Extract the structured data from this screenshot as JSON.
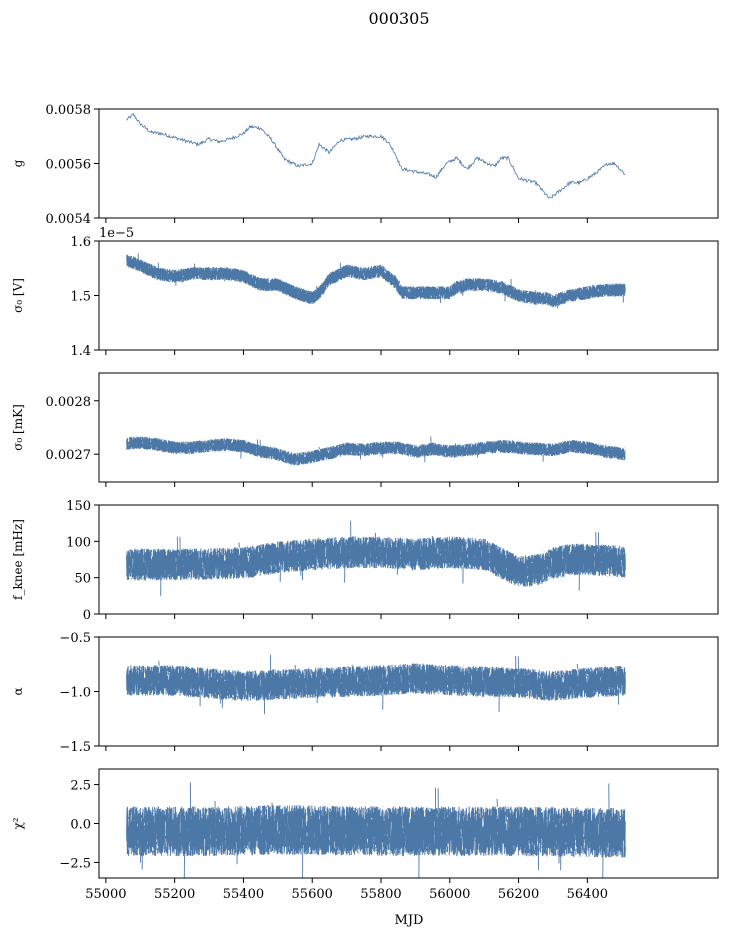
{
  "chart_data": {
    "type": "line",
    "title": "000305",
    "xlabel": "MJD",
    "xlim": [
      54980,
      56780
    ],
    "xticks": [
      55000,
      55200,
      55400,
      55600,
      55800,
      56000,
      56200,
      56400
    ],
    "xtick_labels": [
      "55000",
      "55200",
      "55400",
      "55600",
      "55800",
      "56000",
      "56200",
      "56400"
    ],
    "line_color": "#4c78a8",
    "panels": [
      {
        "id": "gain",
        "ylabel": "g",
        "ylim": [
          0.0054,
          0.0058
        ],
        "yticks": [
          0.0054,
          0.0056,
          0.0058
        ],
        "ytick_labels": [
          "0.0054",
          "0.0056",
          "0.0058"
        ],
        "offset_text": "",
        "style": "line",
        "series": {
          "name": "g",
          "x": [
            55060,
            55080,
            55100,
            55130,
            55160,
            55200,
            55240,
            55270,
            55300,
            55330,
            55360,
            55400,
            55420,
            55450,
            55480,
            55520,
            55560,
            55600,
            55620,
            55650,
            55680,
            55720,
            55760,
            55800,
            55820,
            55840,
            55860,
            55900,
            55940,
            55960,
            55990,
            56020,
            56050,
            56080,
            56110,
            56130,
            56150,
            56170,
            56200,
            56250,
            56290,
            56320,
            56350,
            56380,
            56420,
            56460,
            56480,
            56510
          ],
          "y": [
            0.00576,
            0.00578,
            0.005745,
            0.005715,
            0.00571,
            0.005695,
            0.00568,
            0.00567,
            0.00569,
            0.00568,
            0.00569,
            0.00571,
            0.005735,
            0.00573,
            0.00569,
            0.005615,
            0.00559,
            0.0056,
            0.00567,
            0.00564,
            0.005685,
            0.00569,
            0.0057,
            0.0057,
            0.00568,
            0.00564,
            0.00558,
            0.00557,
            0.00556,
            0.00555,
            0.0056,
            0.00562,
            0.00558,
            0.00562,
            0.0056,
            0.00559,
            0.00562,
            0.00562,
            0.005545,
            0.00553,
            0.00547,
            0.0055,
            0.00553,
            0.00553,
            0.00556,
            0.0056,
            0.0056,
            0.00556
          ]
        }
      },
      {
        "id": "sigma0_v",
        "ylabel": "σ₀ [V]",
        "ylim": [
          1.4,
          1.6
        ],
        "yticks": [
          1.4,
          1.5,
          1.6
        ],
        "ytick_labels": [
          "1.4",
          "1.5",
          "1.6"
        ],
        "offset_text": "1e−5",
        "style": "band",
        "series": {
          "name": "sigma0 [V] (×1e-5)",
          "x": [
            55060,
            55100,
            55150,
            55200,
            55250,
            55300,
            55350,
            55400,
            55450,
            55500,
            55550,
            55600,
            55620,
            55650,
            55700,
            55750,
            55800,
            55840,
            55860,
            55900,
            55950,
            56000,
            56020,
            56050,
            56100,
            56150,
            56200,
            56250,
            56280,
            56300,
            56350,
            56400,
            56450,
            56510
          ],
          "y": [
            1.565,
            1.555,
            1.54,
            1.535,
            1.54,
            1.54,
            1.54,
            1.535,
            1.52,
            1.52,
            1.505,
            1.495,
            1.505,
            1.53,
            1.545,
            1.54,
            1.545,
            1.525,
            1.505,
            1.505,
            1.505,
            1.505,
            1.515,
            1.52,
            1.52,
            1.515,
            1.5,
            1.495,
            1.495,
            1.49,
            1.5,
            1.505,
            1.51,
            1.51
          ],
          "spread": 0.012
        }
      },
      {
        "id": "sigma0_mk",
        "ylabel": "σ₀ [mK]",
        "ylim": [
          0.002648,
          0.002852
        ],
        "yticks": [
          0.0027,
          0.0028
        ],
        "ytick_labels": [
          "0.0027",
          "0.0028"
        ],
        "offset_text": "",
        "style": "band",
        "series": {
          "name": "sigma0 [mK]",
          "x": [
            55060,
            55100,
            55150,
            55200,
            55250,
            55300,
            55350,
            55400,
            55450,
            55500,
            55550,
            55600,
            55650,
            55700,
            55750,
            55800,
            55850,
            55900,
            55950,
            56000,
            56050,
            56100,
            56150,
            56200,
            56250,
            56300,
            56350,
            56400,
            56450,
            56510
          ],
          "y": [
            0.00272,
            0.002722,
            0.002718,
            0.002712,
            0.002712,
            0.002716,
            0.002718,
            0.002715,
            0.002705,
            0.0027,
            0.00269,
            0.002695,
            0.002702,
            0.00271,
            0.002708,
            0.002712,
            0.002712,
            0.002705,
            0.00271,
            0.002705,
            0.002708,
            0.002712,
            0.002715,
            0.002712,
            0.00271,
            0.002708,
            0.002715,
            0.002712,
            0.002705,
            0.0027
          ],
          "spread": 1.2e-05
        }
      },
      {
        "id": "fknee",
        "ylabel": "f_knee [mHz]",
        "ylim": [
          0,
          150
        ],
        "yticks": [
          0,
          50,
          100,
          150
        ],
        "ytick_labels": [
          "0",
          "50",
          "100",
          "150"
        ],
        "offset_text": "",
        "style": "band",
        "series": {
          "name": "fknee [mHz]",
          "x": [
            55060,
            55200,
            55400,
            55500,
            55600,
            55700,
            55800,
            55900,
            56000,
            56100,
            56200,
            56250,
            56300,
            56350,
            56400,
            56510
          ],
          "y": [
            68,
            68,
            70,
            78,
            82,
            85,
            85,
            82,
            85,
            82,
            58,
            60,
            70,
            75,
            75,
            72
          ],
          "spread": 22
        }
      },
      {
        "id": "alpha",
        "ylabel": "α",
        "ylim": [
          -1.5,
          -0.5
        ],
        "yticks": [
          -1.5,
          -1.0,
          -0.5
        ],
        "ytick_labels": [
          "−1.5",
          "−1.0",
          "−0.5"
        ],
        "offset_text": "",
        "style": "band",
        "series": {
          "name": "alpha",
          "x": [
            55060,
            55200,
            55400,
            55600,
            55800,
            55900,
            56000,
            56200,
            56300,
            56400,
            56510
          ],
          "y": [
            -0.9,
            -0.9,
            -0.95,
            -0.92,
            -0.9,
            -0.88,
            -0.9,
            -0.92,
            -0.95,
            -0.92,
            -0.9
          ],
          "spread": 0.14
        }
      },
      {
        "id": "chi2",
        "ylabel": "χ²",
        "ylim": [
          -3.5,
          3.5
        ],
        "yticks": [
          -2.5,
          0.0,
          2.5
        ],
        "ytick_labels": [
          "−2.5",
          "0.0",
          "2.5"
        ],
        "offset_text": "",
        "style": "band",
        "series": {
          "name": "chi2",
          "x": [
            55060,
            55300,
            55500,
            55800,
            56000,
            56200,
            56510
          ],
          "y": [
            -0.5,
            -0.5,
            -0.4,
            -0.5,
            -0.5,
            -0.5,
            -0.6
          ],
          "spread": 1.6
        }
      }
    ]
  }
}
